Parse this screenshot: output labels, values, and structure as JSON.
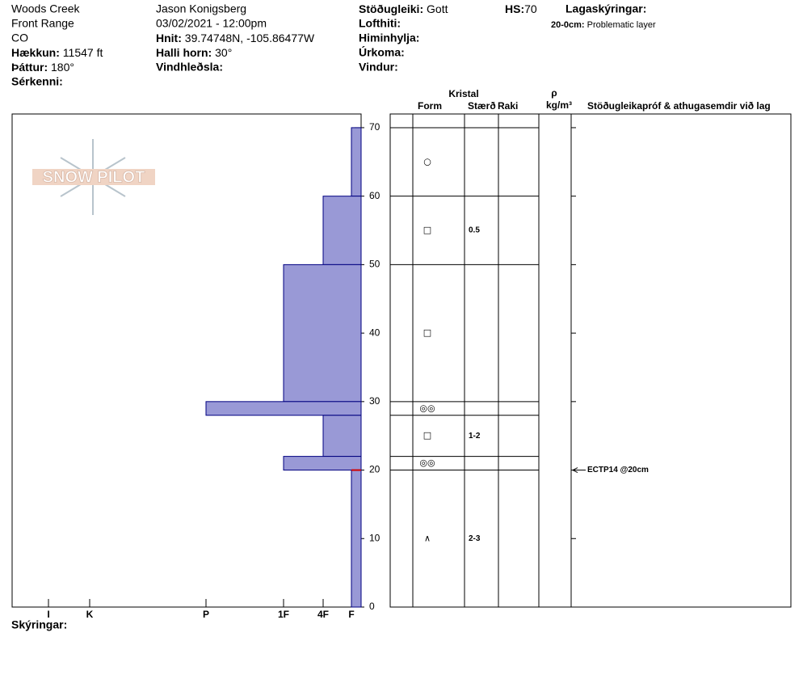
{
  "header": {
    "location": "Woods Creek",
    "range": "Front Range",
    "state": "CO",
    "elevation": {
      "label": "Hækkun:",
      "value": "11547 ft"
    },
    "aspect": {
      "label": "Þáttur:",
      "value": "180°"
    },
    "features": {
      "label": "Sérkenni:"
    },
    "observer": "Jason Konigsberg",
    "datetime": "03/02/2021 - 12:00pm",
    "coords": {
      "label": "Hnit:",
      "value": "39.74748N, -105.86477W"
    },
    "slope": {
      "label": "Halli horn:",
      "value": "30°"
    },
    "wind_loading": {
      "label": "Vindhleðsla:"
    },
    "stability": {
      "label": "Stöðugleiki:",
      "value": "Gott"
    },
    "hs": {
      "label": "HS:",
      "value": 70
    },
    "air_temp": {
      "label": "Lofthiti:"
    },
    "sky": {
      "label": "Himinhylja:"
    },
    "precip": {
      "label": "Úrkoma:"
    },
    "wind": {
      "label": "Vindur:"
    },
    "legend": {
      "label": "Lagaskýringar:",
      "layer": "20-0cm:",
      "note": "Problematic layer"
    }
  },
  "logo": "SNOW PILOT",
  "chart_data": {
    "type": "hardness-profile",
    "ylim": [
      0,
      72
    ],
    "yticks": [
      0,
      10,
      20,
      30,
      40,
      50,
      60,
      70
    ],
    "xlim": [
      432,
      0
    ],
    "xticks": [
      {
        "value": 387,
        "label": "I"
      },
      {
        "value": 336,
        "label": "K"
      },
      {
        "value": 192,
        "label": "P"
      },
      {
        "value": 96,
        "label": "1F"
      },
      {
        "value": 47,
        "label": "4F"
      },
      {
        "value": 12,
        "label": "F"
      }
    ],
    "color": "#9999d6",
    "problem_depth": 20,
    "layers": [
      {
        "top": 70,
        "bottom": 60,
        "hardness": 12,
        "form": "○"
      },
      {
        "top": 60,
        "bottom": 50,
        "hardness": 47,
        "form": "□",
        "size": "0.5"
      },
      {
        "top": 50,
        "bottom": 30,
        "hardness": 96,
        "form": "□"
      },
      {
        "top": 30,
        "bottom": 28,
        "hardness": 192,
        "form": "◎◎"
      },
      {
        "top": 28,
        "bottom": 22,
        "hardness": 47,
        "form": "□",
        "size": "1-2"
      },
      {
        "top": 22,
        "bottom": 20,
        "hardness": 96,
        "form": "◎◎"
      },
      {
        "top": 20,
        "bottom": 0,
        "hardness": 12,
        "form": "∧",
        "size": "2-3"
      }
    ],
    "tests": [
      {
        "depth": 20,
        "label": "ECTP14 @20cm"
      }
    ],
    "columns": {
      "crystal": "Kristal",
      "form": "Form",
      "size": "Stærð",
      "moisture": "Raki",
      "density": "ρ",
      "density_unit": "kg/m³",
      "comments": "Stöðugleikapróf & athugasemdir við lag"
    },
    "notes_label": "Skýringar:"
  }
}
